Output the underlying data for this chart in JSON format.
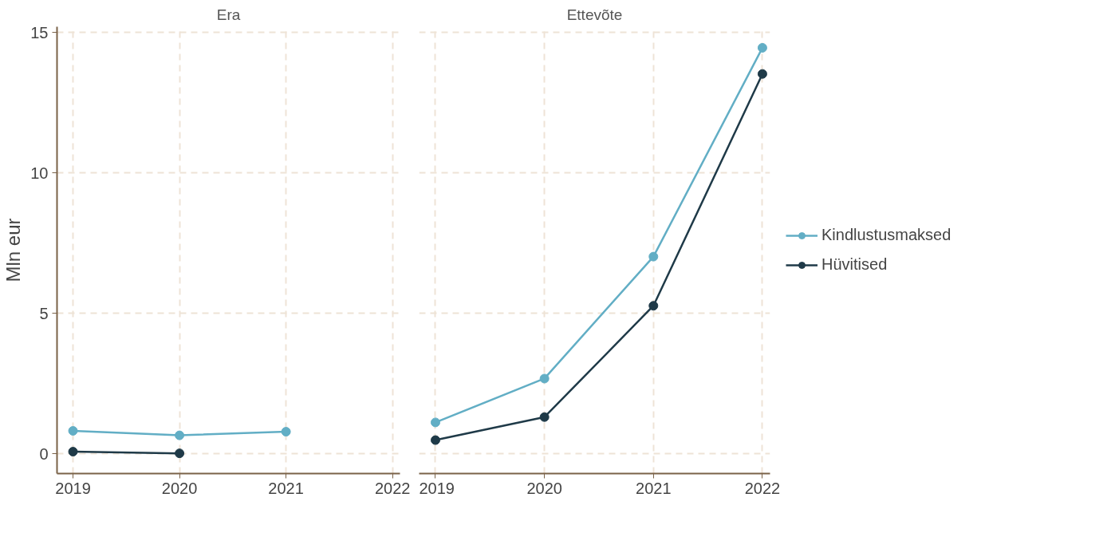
{
  "chart_data": [
    {
      "type": "line",
      "title": "Era",
      "ylabel": "Mln eur",
      "x": [
        2019,
        2020,
        2021
      ],
      "xlim": [
        2018.85,
        2022.07
      ],
      "xticks": [
        2019,
        2020,
        2021,
        2022
      ],
      "ylim": [
        -0.7,
        15.2
      ],
      "yticks": [
        0,
        5,
        10,
        15
      ],
      "grid": true,
      "marker": "circle",
      "line_style": "solid",
      "legend": false,
      "series": [
        {
          "color": "#62aec5",
          "values": [
            0.82,
            0.66,
            0.79
          ]
        },
        {
          "color": "#1f3a48",
          "values": [
            0.08,
            0.02,
            null
          ]
        }
      ]
    },
    {
      "type": "line",
      "title": "Ettevõte",
      "x": [
        2019,
        2020,
        2021,
        2022
      ],
      "xlim": [
        2018.85,
        2022.07
      ],
      "xticks": [
        2019,
        2020,
        2021,
        2022
      ],
      "ylim": [
        -0.7,
        15.2
      ],
      "yticks": [
        0,
        5,
        10,
        15
      ],
      "grid": true,
      "marker": "circle",
      "line_style": "solid",
      "legend": "right",
      "tick_labels": "x",
      "series": [
        {
          "name": "Kindlustusmaksed",
          "color": "#62aec5",
          "values": [
            1.12,
            2.68,
            7.02,
            14.45
          ]
        },
        {
          "name": "Hüvitised",
          "color": "#1f3a48",
          "values": [
            0.49,
            1.31,
            5.27,
            13.52
          ]
        }
      ]
    }
  ]
}
